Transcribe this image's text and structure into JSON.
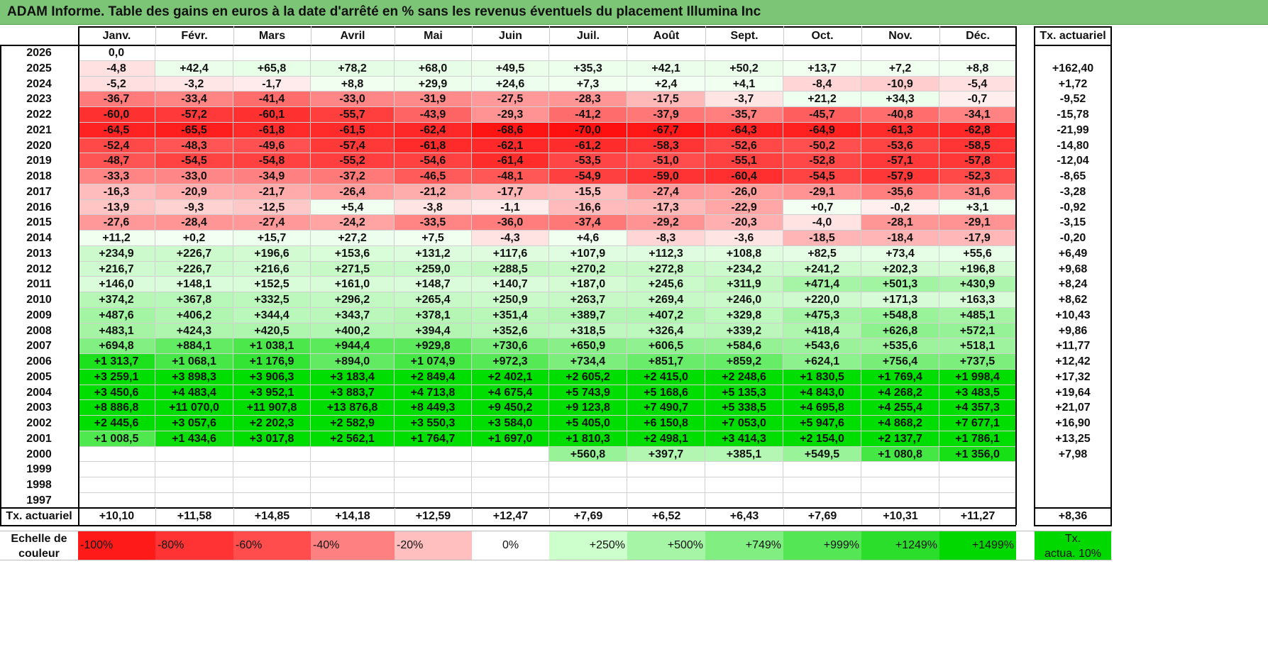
{
  "title": "ADAM Informe. Table des gains en euros à la date d'arrêté en % sans les revenus éventuels du placement Illumina Inc",
  "months": [
    "Janv.",
    "Févr.",
    "Mars",
    "Avril",
    "Mai",
    "Juin",
    "Juil.",
    "Août",
    "Sept.",
    "Oct.",
    "Nov.",
    "Déc."
  ],
  "annual_header": "Tx. actuariel",
  "rows": [
    {
      "year": "2026",
      "values": [
        "0,0",
        "",
        "",
        "",
        "",
        "",
        "",
        "",
        "",
        "",
        "",
        ""
      ],
      "annual": ""
    },
    {
      "year": "2025",
      "values": [
        "-4,8",
        "+42,4",
        "+65,8",
        "+78,2",
        "+68,0",
        "+49,5",
        "+35,3",
        "+42,1",
        "+50,2",
        "+13,7",
        "+7,2",
        "+8,8"
      ],
      "annual": "+162,40"
    },
    {
      "year": "2024",
      "values": [
        "-5,2",
        "-3,2",
        "-1,7",
        "+8,8",
        "+29,9",
        "+24,6",
        "+7,3",
        "+2,4",
        "+4,1",
        "-8,4",
        "-10,9",
        "-5,4"
      ],
      "annual": "+1,72"
    },
    {
      "year": "2023",
      "values": [
        "-36,7",
        "-33,4",
        "-41,4",
        "-33,0",
        "-31,9",
        "-27,5",
        "-28,3",
        "-17,5",
        "-3,7",
        "+21,2",
        "+34,3",
        "-0,7"
      ],
      "annual": "-9,52"
    },
    {
      "year": "2022",
      "values": [
        "-60,0",
        "-57,2",
        "-60,1",
        "-55,7",
        "-43,9",
        "-29,3",
        "-41,2",
        "-37,9",
        "-35,7",
        "-45,7",
        "-40,8",
        "-34,1"
      ],
      "annual": "-15,78"
    },
    {
      "year": "2021",
      "values": [
        "-64,5",
        "-65,5",
        "-61,8",
        "-61,5",
        "-62,4",
        "-68,6",
        "-70,0",
        "-67,7",
        "-64,3",
        "-64,9",
        "-61,3",
        "-62,8"
      ],
      "annual": "-21,99"
    },
    {
      "year": "2020",
      "values": [
        "-52,4",
        "-48,3",
        "-49,6",
        "-57,4",
        "-61,8",
        "-62,1",
        "-61,2",
        "-58,3",
        "-52,6",
        "-50,2",
        "-53,6",
        "-58,5"
      ],
      "annual": "-14,80"
    },
    {
      "year": "2019",
      "values": [
        "-48,7",
        "-54,5",
        "-54,8",
        "-55,2",
        "-54,6",
        "-61,4",
        "-53,5",
        "-51,0",
        "-55,1",
        "-52,8",
        "-57,1",
        "-57,8"
      ],
      "annual": "-12,04"
    },
    {
      "year": "2018",
      "values": [
        "-33,3",
        "-33,0",
        "-34,9",
        "-37,2",
        "-46,5",
        "-48,1",
        "-54,9",
        "-59,0",
        "-60,4",
        "-54,5",
        "-57,9",
        "-52,3"
      ],
      "annual": "-8,65"
    },
    {
      "year": "2017",
      "values": [
        "-16,3",
        "-20,9",
        "-21,7",
        "-26,4",
        "-21,2",
        "-17,7",
        "-15,5",
        "-27,4",
        "-26,0",
        "-29,1",
        "-35,6",
        "-31,6"
      ],
      "annual": "-3,28"
    },
    {
      "year": "2016",
      "values": [
        "-13,9",
        "-9,3",
        "-12,5",
        "+5,4",
        "-3,8",
        "-1,1",
        "-16,6",
        "-17,3",
        "-22,9",
        "+0,7",
        "-0,2",
        "+3,1"
      ],
      "annual": "-0,92"
    },
    {
      "year": "2015",
      "values": [
        "-27,6",
        "-28,4",
        "-27,4",
        "-24,2",
        "-33,5",
        "-36,0",
        "-37,4",
        "-29,2",
        "-20,3",
        "-4,0",
        "-28,1",
        "-29,1"
      ],
      "annual": "-3,15"
    },
    {
      "year": "2014",
      "values": [
        "+11,2",
        "+0,2",
        "+15,7",
        "+27,2",
        "+7,5",
        "-4,3",
        "+4,6",
        "-8,3",
        "-3,6",
        "-18,5",
        "-18,4",
        "-17,9"
      ],
      "annual": "-0,20"
    },
    {
      "year": "2013",
      "values": [
        "+234,9",
        "+226,7",
        "+196,6",
        "+153,6",
        "+131,2",
        "+117,6",
        "+107,9",
        "+112,3",
        "+108,8",
        "+82,5",
        "+73,4",
        "+55,6"
      ],
      "annual": "+6,49"
    },
    {
      "year": "2012",
      "values": [
        "+216,7",
        "+226,7",
        "+216,6",
        "+271,5",
        "+259,0",
        "+288,5",
        "+270,2",
        "+272,8",
        "+234,2",
        "+241,2",
        "+202,3",
        "+196,8"
      ],
      "annual": "+9,68"
    },
    {
      "year": "2011",
      "values": [
        "+146,0",
        "+148,1",
        "+152,5",
        "+161,0",
        "+148,7",
        "+140,7",
        "+187,0",
        "+245,6",
        "+311,9",
        "+471,4",
        "+501,3",
        "+430,9"
      ],
      "annual": "+8,24"
    },
    {
      "year": "2010",
      "values": [
        "+374,2",
        "+367,8",
        "+332,5",
        "+296,2",
        "+265,4",
        "+250,9",
        "+263,7",
        "+269,4",
        "+246,0",
        "+220,0",
        "+171,3",
        "+163,3"
      ],
      "annual": "+8,62"
    },
    {
      "year": "2009",
      "values": [
        "+487,6",
        "+406,2",
        "+344,4",
        "+343,7",
        "+378,1",
        "+351,4",
        "+389,7",
        "+407,2",
        "+329,8",
        "+475,3",
        "+548,8",
        "+485,1"
      ],
      "annual": "+10,43"
    },
    {
      "year": "2008",
      "values": [
        "+483,1",
        "+424,3",
        "+420,5",
        "+400,2",
        "+394,4",
        "+352,6",
        "+318,5",
        "+326,4",
        "+339,2",
        "+418,4",
        "+626,8",
        "+572,1"
      ],
      "annual": "+9,86"
    },
    {
      "year": "2007",
      "values": [
        "+694,8",
        "+884,1",
        "+1 038,1",
        "+944,4",
        "+929,8",
        "+730,6",
        "+650,9",
        "+606,5",
        "+584,6",
        "+543,6",
        "+535,6",
        "+518,1"
      ],
      "annual": "+11,77"
    },
    {
      "year": "2006",
      "values": [
        "+1 313,7",
        "+1 068,1",
        "+1 176,9",
        "+894,0",
        "+1 074,9",
        "+972,3",
        "+734,4",
        "+851,7",
        "+859,2",
        "+624,1",
        "+756,4",
        "+737,5"
      ],
      "annual": "+12,42"
    },
    {
      "year": "2005",
      "values": [
        "+3 259,1",
        "+3 898,3",
        "+3 906,3",
        "+3 183,4",
        "+2 849,4",
        "+2 402,1",
        "+2 605,2",
        "+2 415,0",
        "+2 248,6",
        "+1 830,5",
        "+1 769,4",
        "+1 998,4"
      ],
      "annual": "+17,32"
    },
    {
      "year": "2004",
      "values": [
        "+3 450,6",
        "+4 483,4",
        "+3 952,1",
        "+3 883,7",
        "+4 713,8",
        "+4 675,4",
        "+5 743,9",
        "+5 168,6",
        "+5 135,3",
        "+4 843,0",
        "+4 268,2",
        "+3 483,5"
      ],
      "annual": "+19,64"
    },
    {
      "year": "2003",
      "values": [
        "+8 886,8",
        "+11 070,0",
        "+11 907,8",
        "+13 876,8",
        "+8 449,3",
        "+9 450,2",
        "+9 123,8",
        "+7 490,7",
        "+5 338,5",
        "+4 695,8",
        "+4 255,4",
        "+4 357,3"
      ],
      "annual": "+21,07"
    },
    {
      "year": "2002",
      "values": [
        "+2 445,6",
        "+3 057,6",
        "+2 202,3",
        "+2 582,9",
        "+3 550,3",
        "+3 584,0",
        "+5 405,0",
        "+6 150,8",
        "+7 053,0",
        "+5 947,6",
        "+4 868,2",
        "+7 677,1"
      ],
      "annual": "+16,90"
    },
    {
      "year": "2001",
      "values": [
        "+1 008,5",
        "+1 434,6",
        "+3 017,8",
        "+2 562,1",
        "+1 764,7",
        "+1 697,0",
        "+1 810,3",
        "+2 498,1",
        "+3 414,3",
        "+2 154,0",
        "+2 137,7",
        "+1 786,1"
      ],
      "annual": "+13,25"
    },
    {
      "year": "2000",
      "values": [
        "",
        "",
        "",
        "",
        "",
        "",
        "+560,8",
        "+397,7",
        "+385,1",
        "+549,5",
        "+1 080,8",
        "+1 356,0"
      ],
      "annual": "+7,98"
    },
    {
      "year": "1999",
      "values": [
        "",
        "",
        "",
        "",
        "",
        "",
        "",
        "",
        "",
        "",
        "",
        ""
      ],
      "annual": ""
    },
    {
      "year": "1998",
      "values": [
        "",
        "",
        "",
        "",
        "",
        "",
        "",
        "",
        "",
        "",
        "",
        ""
      ],
      "annual": ""
    },
    {
      "year": "1997",
      "values": [
        "",
        "",
        "",
        "",
        "",
        "",
        "",
        "",
        "",
        "",
        "",
        ""
      ],
      "annual": ""
    }
  ],
  "footer": {
    "label": "Tx. actuariel",
    "values": [
      "+10,10",
      "+11,58",
      "+14,85",
      "+14,18",
      "+12,59",
      "+12,47",
      "+7,69",
      "+6,52",
      "+6,43",
      "+7,69",
      "+10,31",
      "+11,27"
    ],
    "annual": "+8,36"
  },
  "scale": {
    "label_line1": "Echelle de",
    "label_line2": "couleur",
    "items": [
      {
        "text": "-100%",
        "align": "left",
        "color": "#ff1a1a"
      },
      {
        "text": "-80%",
        "align": "left",
        "color": "#ff3333"
      },
      {
        "text": "-60%",
        "align": "left",
        "color": "#ff4d4d"
      },
      {
        "text": "-40%",
        "align": "left",
        "color": "#ff8080"
      },
      {
        "text": "-20%",
        "align": "left",
        "color": "#ffbfbf"
      },
      {
        "text": "0%",
        "align": "center",
        "color": "#ffffff"
      },
      {
        "text": "+250%",
        "align": "right",
        "color": "#ccffcc"
      },
      {
        "text": "+500%",
        "align": "right",
        "color": "#a6f5a6"
      },
      {
        "text": "+749%",
        "align": "right",
        "color": "#80ee80"
      },
      {
        "text": "+999%",
        "align": "right",
        "color": "#55e655"
      },
      {
        "text": "+1249%",
        "align": "right",
        "color": "#2bde2b"
      },
      {
        "text": "+1499%",
        "align": "right",
        "color": "#00d800"
      }
    ],
    "annual_line1": "Tx.",
    "annual_line2": "actua. 10%",
    "annual_color": "#00d800"
  }
}
